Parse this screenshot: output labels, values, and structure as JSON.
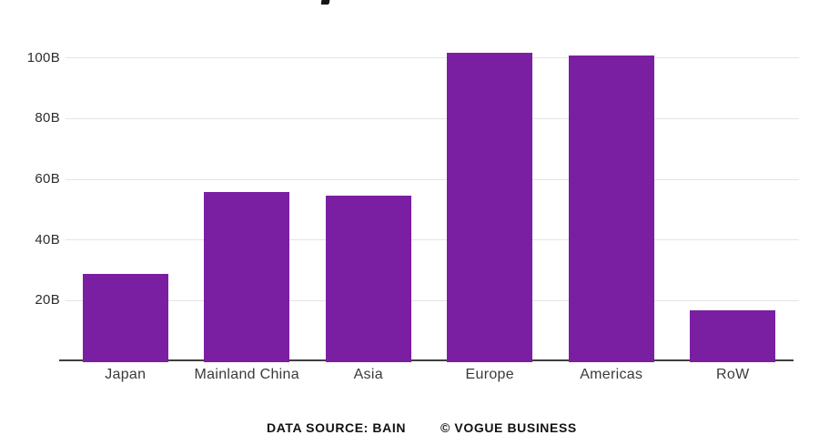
{
  "page": {
    "background": "#ffffff",
    "clipped_title_fragment_visible": true
  },
  "chart_data": {
    "type": "bar",
    "categories": [
      "Japan",
      "Mainland China",
      "Asia",
      "Europe",
      "Americas",
      "RoW"
    ],
    "values": [
      29,
      56,
      55,
      102,
      101,
      17
    ],
    "unit": "B",
    "y_ticks": [
      20,
      40,
      60,
      80,
      100
    ],
    "y_tick_labels": [
      "20B",
      "40B",
      "60B",
      "80B",
      "100B"
    ],
    "ylim": [
      0,
      110
    ],
    "grid": true,
    "legend": false,
    "bar_color": "#7b1fa2",
    "grid_color": "#e4e4e4",
    "axis_color": "#404040",
    "ytick_color": "#2e2e2e",
    "xlabel_color": "#3a3a3a"
  },
  "footer": {
    "source_label": "DATA SOURCE: BAIN",
    "credit_label": "© VOGUE BUSINESS"
  }
}
